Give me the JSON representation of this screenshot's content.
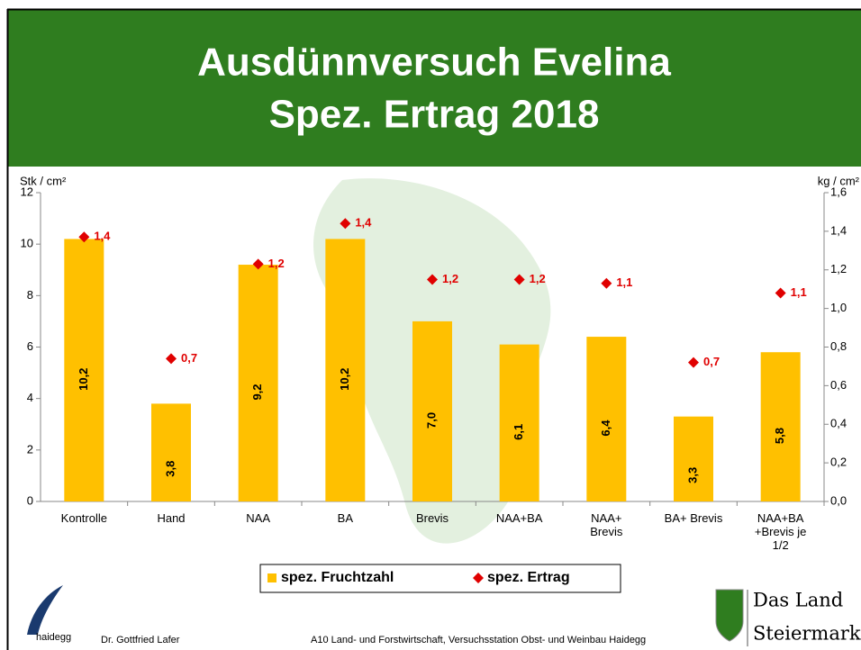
{
  "chart_data": {
    "type": "bar",
    "title": "Ausdünnversuch Evelina",
    "subtitle": "Spez. Ertrag 2018",
    "y_label": "Stk / cm²",
    "y2_label": "kg / cm²",
    "categories": [
      "Kontrolle",
      "Hand",
      "NAA",
      "BA",
      "Brevis",
      "NAA+BA",
      "NAA+ Brevis",
      "BA+ Brevis",
      "NAA+BA +Brevis je 1/2"
    ],
    "series": [
      {
        "name": "spez. Fruchtzahl",
        "color": "#ffc000",
        "type": "bar",
        "values": [
          10.2,
          3.8,
          9.2,
          10.2,
          7.0,
          6.1,
          6.4,
          3.3,
          5.8
        ],
        "value_labels": [
          "10,2",
          "3,8",
          "9,2",
          "10,2",
          "7,0",
          "6,1",
          "6,4",
          "3,3",
          "5,8"
        ]
      },
      {
        "name": "spez. Ertrag",
        "color": "#e00000",
        "type": "scatter",
        "axis": "y2",
        "values": [
          1.37,
          0.74,
          1.23,
          1.44,
          1.15,
          1.15,
          1.13,
          0.72,
          1.08
        ],
        "value_labels": [
          "1,4",
          "0,7",
          "1,2",
          "1,4",
          "1,2",
          "1,2",
          "1,1",
          "0,7",
          "1,1"
        ]
      }
    ],
    "ylim": [
      0,
      12
    ],
    "yticks": [
      0,
      2,
      4,
      6,
      8,
      10,
      12
    ],
    "y2lim": [
      0,
      1.6
    ],
    "y2ticks": [
      {
        "value": 0,
        "label": "0,0"
      },
      {
        "value": 0.2,
        "label": "0,2"
      },
      {
        "value": 0.4,
        "label": "0,4"
      },
      {
        "value": 0.6,
        "label": "0,6"
      },
      {
        "value": 0.8,
        "label": "0,8"
      },
      {
        "value": 1.0,
        "label": "1,0"
      },
      {
        "value": 1.2,
        "label": "1,2"
      },
      {
        "value": 1.4,
        "label": "1,4"
      },
      {
        "value": 1.6,
        "label": "1,6"
      }
    ],
    "legend": "bottom",
    "footer": {
      "logo": "haidegg",
      "author": "Dr. Gottfried Lafer",
      "institution": "A10 Land- und Forstwirtschaft, Versuchsstation Obst- und Weinbau Haidegg",
      "brand_line1": "Das Land",
      "brand_line2": "Steiermark"
    }
  }
}
